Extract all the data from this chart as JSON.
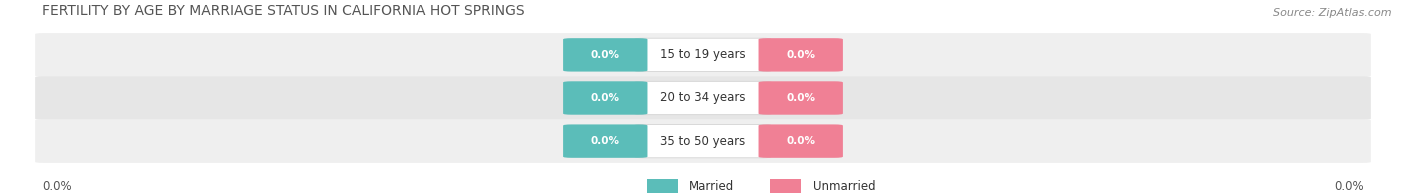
{
  "title": "FERTILITY BY AGE BY MARRIAGE STATUS IN CALIFORNIA HOT SPRINGS",
  "source": "Source: ZipAtlas.com",
  "categories": [
    "15 to 19 years",
    "20 to 34 years",
    "35 to 50 years"
  ],
  "married_values": [
    0.0,
    0.0,
    0.0
  ],
  "unmarried_values": [
    0.0,
    0.0,
    0.0
  ],
  "married_color": "#5bbdb9",
  "unmarried_color": "#f08095",
  "row_bg_colors": [
    "#efefef",
    "#e6e6e6"
  ],
  "background_color": "#ffffff",
  "title_fontsize": 10,
  "source_fontsize": 8,
  "label_fontsize": 8.5,
  "value_fontsize": 7.5,
  "left_label": "0.0%",
  "right_label": "0.0%",
  "legend_married": "Married",
  "legend_unmarried": "Unmarried"
}
